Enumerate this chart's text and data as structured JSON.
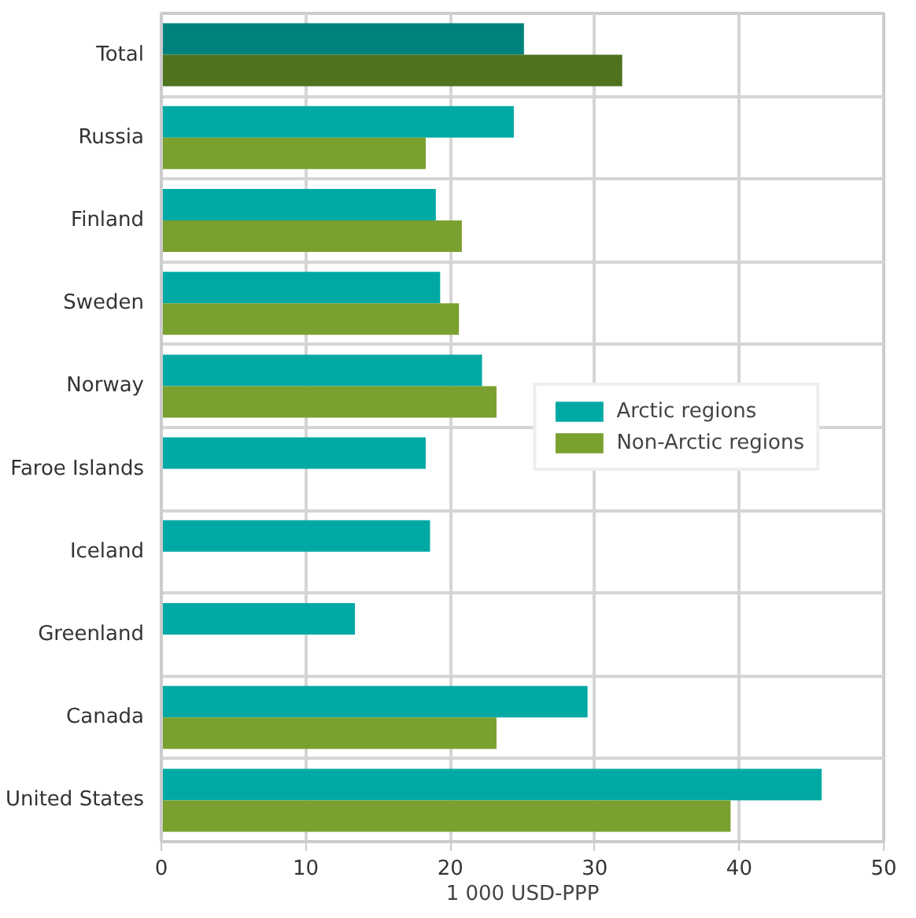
{
  "chart_data": {
    "type": "bar",
    "orientation": "horizontal",
    "xlabel": "1 000 USD-PPP",
    "categories": [
      "Total",
      "Russia",
      "Finland",
      "Sweden",
      "Norway",
      "Faroe Islands",
      "Iceland",
      "Greenland",
      "Canada",
      "United States"
    ],
    "series": [
      {
        "name": "Arctic regions",
        "color": "#00a9a4",
        "colors": [
          "#00827c",
          "#00a9a4",
          "#00a9a4",
          "#00a9a4",
          "#00a9a4",
          "#00a9a4",
          "#00a9a4",
          "#00a9a4",
          "#00a9a4",
          "#00a9a4"
        ],
        "values": [
          25.1,
          24.4,
          19.0,
          19.3,
          22.2,
          18.3,
          18.6,
          13.4,
          29.5,
          45.7
        ]
      },
      {
        "name": "Non-Arctic regions",
        "color": "#7aa02f",
        "colors": [
          "#4e721e",
          "#7aa02f",
          "#7aa02f",
          "#7aa02f",
          "#7aa02f",
          "#7aa02f",
          "#7aa02f",
          "#7aa02f",
          "#7aa02f",
          "#7aa02f"
        ],
        "values": [
          31.9,
          18.3,
          20.8,
          20.6,
          23.2,
          null,
          null,
          null,
          23.2,
          39.4
        ]
      }
    ],
    "xlim": [
      0,
      50
    ],
    "xticks": [
      0,
      10,
      20,
      30,
      40,
      50
    ],
    "grid": true,
    "legend": "right"
  }
}
